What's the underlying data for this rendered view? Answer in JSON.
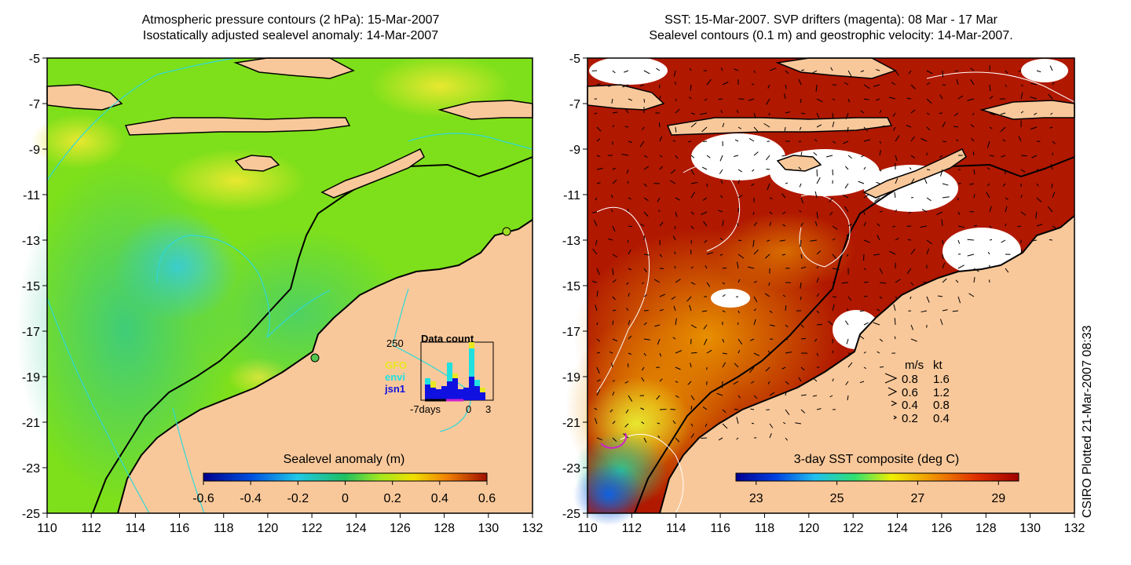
{
  "left_panel": {
    "title_line1": "Atmospheric pressure contours (2 hPa): 15-Mar-2007",
    "title_line2": "Isostatically adjusted sealevel anomaly: 14-Mar-2007",
    "colorbar": {
      "label": "Sealevel anomaly (m)",
      "ticks": [
        "-0.6",
        "-0.4",
        "-0.2",
        "0",
        "0.2",
        "0.4",
        "0.6"
      ]
    },
    "inset": {
      "title": "Data count",
      "ymax_label": "250",
      "x_labels": [
        "-7days",
        "0",
        "3"
      ],
      "legend": [
        {
          "name": "GFO",
          "color": "#e8e820"
        },
        {
          "name": "envi",
          "color": "#20e0e0"
        },
        {
          "name": "jsn1",
          "color": "#1010e0"
        }
      ]
    }
  },
  "right_panel": {
    "title_line1": "SST: 15-Mar-2007. SVP drifters (magenta): 08 Mar - 17 Mar",
    "title_line2": "Sealevel contours (0.1 m) and geostrophic velocity: 14-Mar-2007.",
    "colorbar": {
      "label": "3-day SST composite (deg C)",
      "ticks": [
        "23",
        "25",
        "27",
        "29"
      ]
    },
    "velocity_legend": {
      "header": [
        "m/s",
        "kt"
      ],
      "rows": [
        [
          "0.8",
          "1.6"
        ],
        [
          "0.6",
          "1.2"
        ],
        [
          "0.4",
          "0.8"
        ],
        [
          "0.2",
          "0.4"
        ]
      ]
    }
  },
  "axes": {
    "x_ticks": [
      "110",
      "112",
      "114",
      "116",
      "118",
      "120",
      "122",
      "124",
      "126",
      "128",
      "130",
      "132"
    ],
    "y_ticks": [
      "-5",
      "-7",
      "-9",
      "-11",
      "-13",
      "-15",
      "-17",
      "-19",
      "-21",
      "-23",
      "-25"
    ]
  },
  "credit": "CSIRO Plotted 21-Mar-2007 08:33",
  "colors": {
    "land": "#f9c89a",
    "ocean_green": "#7ee01a",
    "sst_red": "#b01800",
    "cloud": "#ffffff",
    "contour_cyan": "#30d8d8",
    "drifter_magenta": "#d020d0"
  }
}
